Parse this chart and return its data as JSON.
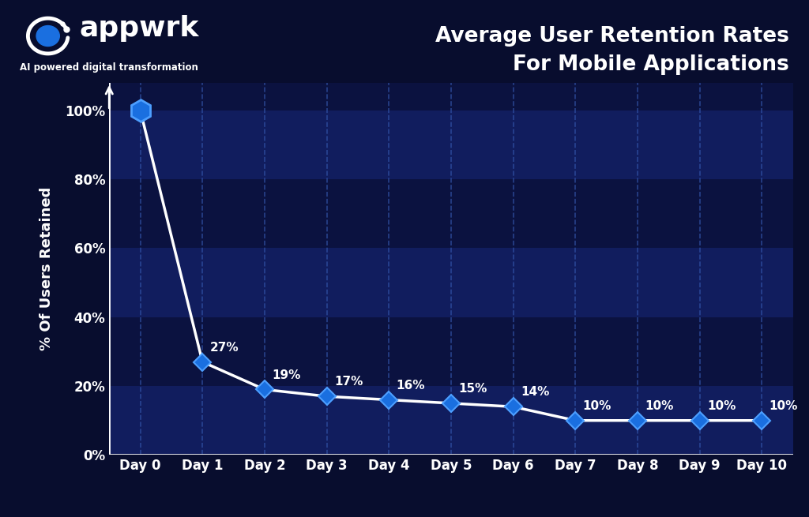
{
  "title": "Average User Retention Rates\nFor Mobile Applications",
  "ylabel": "% Of Users Retained",
  "categories": [
    "Day 0",
    "Day 1",
    "Day 2",
    "Day 3",
    "Day 4",
    "Day 5",
    "Day 6",
    "Day 7",
    "Day 8",
    "Day 9",
    "Day 10"
  ],
  "values": [
    100,
    27,
    19,
    17,
    16,
    15,
    14,
    10,
    10,
    10,
    10
  ],
  "labels": [
    "",
    "27%",
    "19%",
    "17%",
    "16%",
    "15%",
    "14%",
    "10%",
    "10%",
    "10%",
    "10%"
  ],
  "bg_color": "#080d2e",
  "plot_bg_color": "#0b1240",
  "stripe_dark": "#0b1240",
  "stripe_light": "#111d5e",
  "line_color": "#ffffff",
  "marker_color": "#1a6fe0",
  "marker_edge_color": "#4d9fff",
  "text_color": "#ffffff",
  "axis_color": "#ffffff",
  "title_color": "#ffffff",
  "ylabel_color": "#ffffff",
  "grid_color": "#3355aa",
  "yticks": [
    0,
    20,
    40,
    60,
    80,
    100
  ],
  "ylim": [
    0,
    108
  ],
  "logo_text": "appwrk",
  "logo_subtitle": "AI powered digital transformation",
  "logo_bg": "#1565C0",
  "title_fontsize": 19,
  "label_fontsize": 11,
  "tick_fontsize": 12,
  "ylabel_fontsize": 13
}
